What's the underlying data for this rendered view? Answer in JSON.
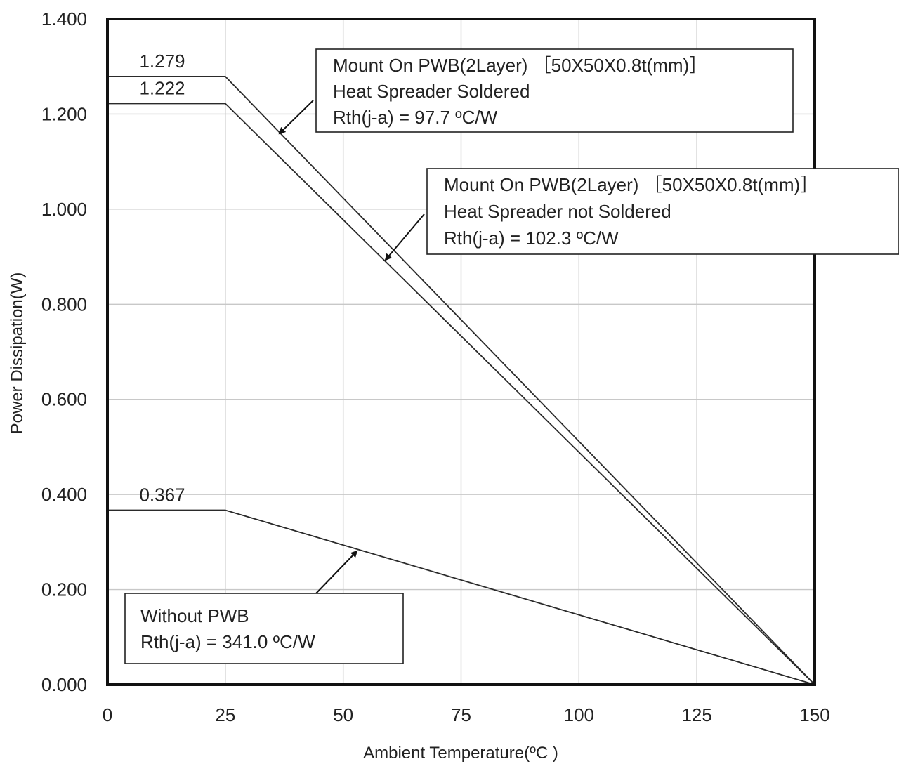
{
  "chart_data": {
    "type": "line",
    "xlabel": "Ambient Temperature(ºC )",
    "ylabel": "Power Dissipation(W)",
    "xlim": [
      0,
      150
    ],
    "ylim": [
      0,
      1.4
    ],
    "x_ticks": [
      "0",
      "25",
      "50",
      "75",
      "100",
      "125",
      "150"
    ],
    "x_tick_values": [
      0,
      25,
      50,
      75,
      100,
      125,
      150
    ],
    "y_ticks": [
      "0.000",
      "0.200",
      "0.400",
      "0.600",
      "0.800",
      "1.000",
      "1.200",
      "1.400"
    ],
    "y_tick_values": [
      0,
      0.2,
      0.4,
      0.6,
      0.8,
      1.0,
      1.2,
      1.4
    ],
    "grid": true,
    "series": [
      {
        "x": [
          0,
          25,
          150
        ],
        "y": [
          1.279,
          1.279,
          0
        ],
        "value_label": "1.279",
        "annotation": [
          "Mount On PWB(2Layer) ［50X50X0.8t(mm)］",
          "Heat Spreader Soldered",
          "Rth(j-a) = 97.7 ºC/W"
        ]
      },
      {
        "x": [
          0,
          25,
          150
        ],
        "y": [
          1.222,
          1.222,
          0
        ],
        "value_label": "1.222",
        "annotation": [
          "Mount On PWB(2Layer) ［50X50X0.8t(mm)］",
          "Heat Spreader not Soldered",
          "Rth(j-a) = 102.3 ºC/W"
        ]
      },
      {
        "x": [
          0,
          25,
          150
        ],
        "y": [
          0.367,
          0.367,
          0
        ],
        "value_label": "0.367",
        "annotation": [
          "Without PWB",
          "Rth(j-a) = 341.0 ºC/W"
        ]
      }
    ]
  }
}
